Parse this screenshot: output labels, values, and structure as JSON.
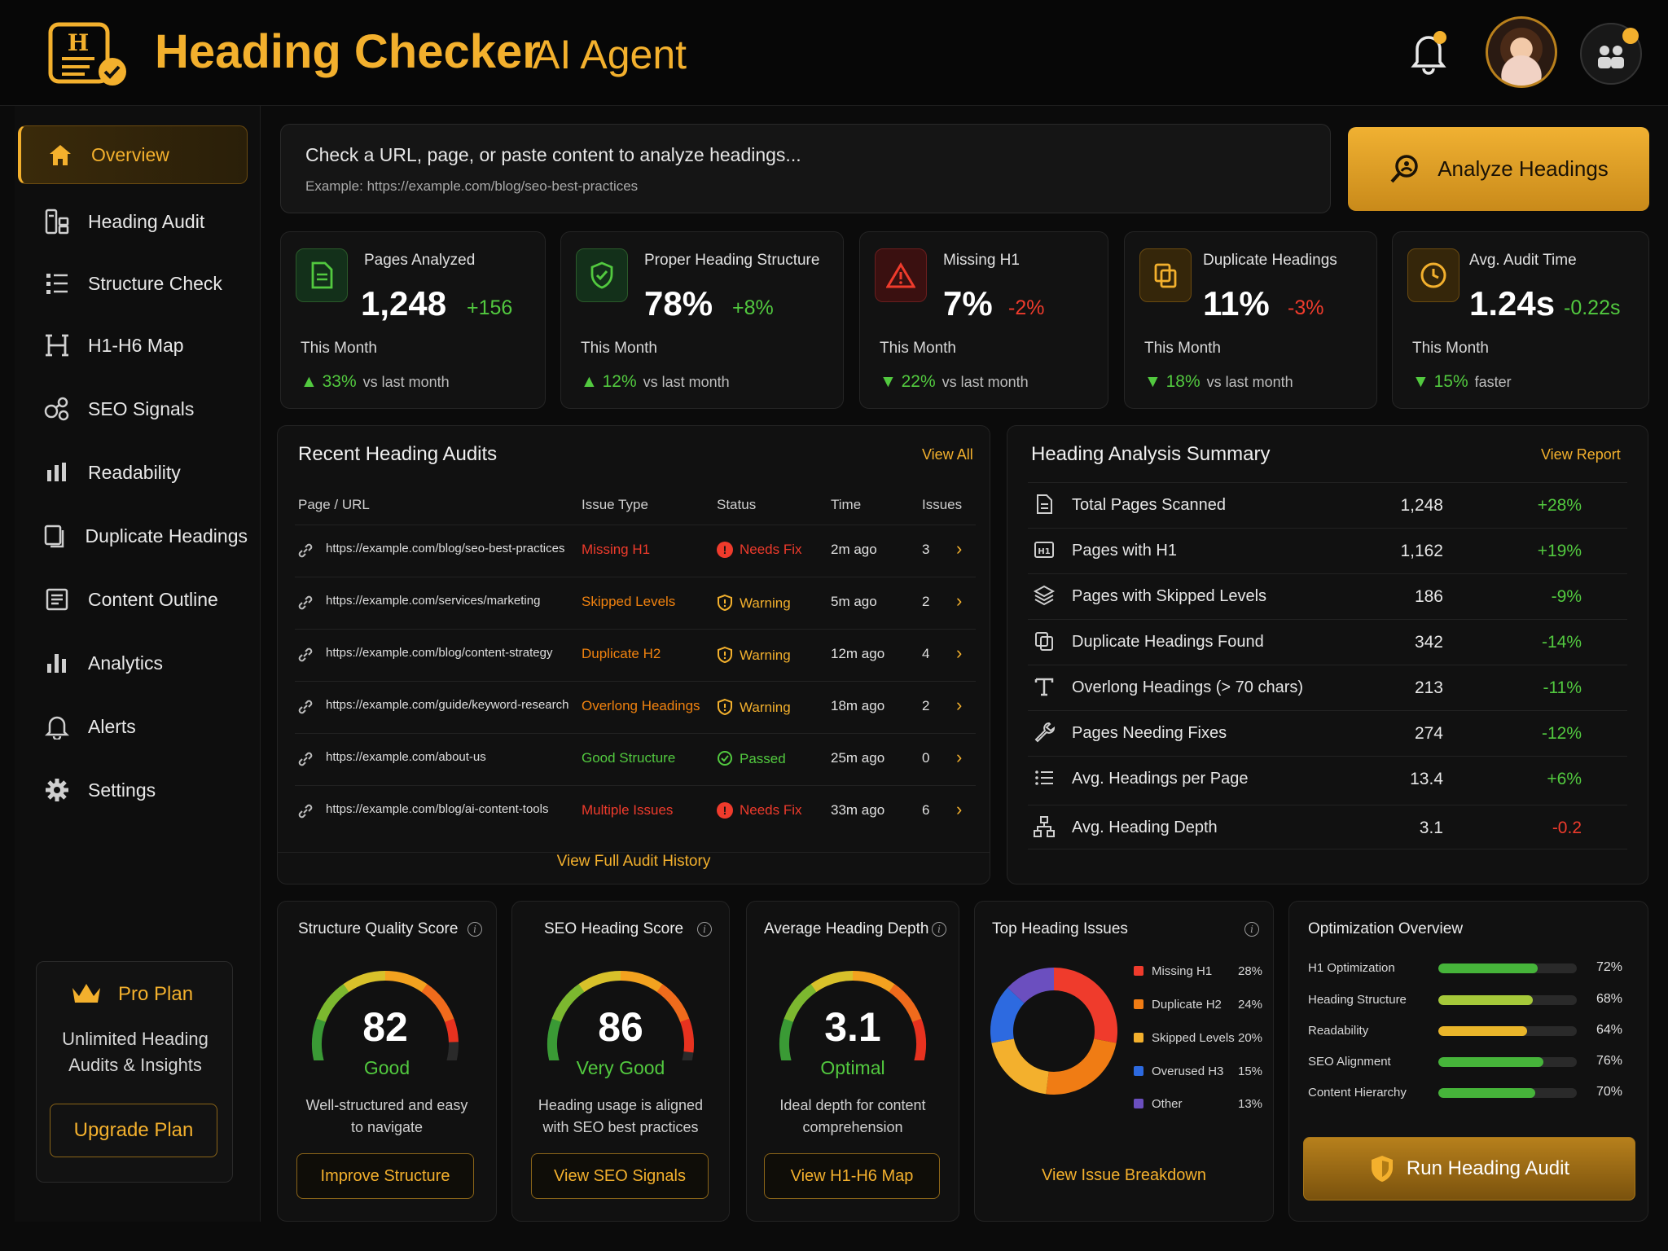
{
  "app": {
    "title_main": "Heading Checker",
    "title_sub": "AI Agent",
    "accent": "#f3b02d"
  },
  "sidebar": {
    "items": [
      {
        "label": "Overview",
        "icon": "home-icon",
        "active": true
      },
      {
        "label": "Heading Audit",
        "icon": "audit-icon"
      },
      {
        "label": "Structure Check",
        "icon": "list-icon"
      },
      {
        "label": "H1-H6 Map",
        "icon": "heading-h-icon"
      },
      {
        "label": "SEO Signals",
        "icon": "seo-signals-icon"
      },
      {
        "label": "Readability",
        "icon": "readability-bars-icon"
      },
      {
        "label": "Duplicate Headings",
        "icon": "duplicate-icon"
      },
      {
        "label": "Content Outline",
        "icon": "outline-icon"
      },
      {
        "label": "Analytics",
        "icon": "analytics-icon"
      },
      {
        "label": "Alerts",
        "icon": "bell-icon"
      },
      {
        "label": "Settings",
        "icon": "gear-icon"
      }
    ],
    "plan": {
      "name": "Pro Plan",
      "desc_line1": "Unlimited Heading",
      "desc_line2": "Audits & Insights",
      "button": "Upgrade Plan"
    }
  },
  "search": {
    "placeholder": "Check a URL, page, or paste content to analyze headings...",
    "example": "Example: https://example.com/blog/seo-best-practices",
    "button": "Analyze Headings"
  },
  "stats": [
    {
      "title": "Pages Analyzed",
      "value": "1,248",
      "delta": "+156",
      "period": "This Month",
      "trend_pct": "33%",
      "trend_text": "vs last month"
    },
    {
      "title": "Proper Heading Structure",
      "value": "78%",
      "delta": "+8%",
      "period": "This Month",
      "trend_pct": "12%",
      "trend_text": "vs last month"
    },
    {
      "title": "Missing H1",
      "value": "7%",
      "delta": "-2%",
      "period": "This Month",
      "trend_pct": "22%",
      "trend_text": "vs last month"
    },
    {
      "title": "Duplicate Headings",
      "value": "11%",
      "delta": "-3%",
      "period": "This Month",
      "trend_pct": "18%",
      "trend_text": "vs last month"
    },
    {
      "title": "Avg. Audit Time",
      "value": "1.24s",
      "delta": "-0.22s",
      "period": "This Month",
      "trend_pct": "15%",
      "trend_text": "faster"
    }
  ],
  "recent": {
    "title": "Recent Heading Audits",
    "view_all": "View All",
    "headers": [
      "Page / URL",
      "Issue Type",
      "Status",
      "Time",
      "Issues"
    ],
    "rows": [
      {
        "url": "https://example.com/blog/seo-best-practices",
        "issue": "Missing H1",
        "status": "Needs Fix",
        "time": "2m ago",
        "count": "3"
      },
      {
        "url": "https://example.com/services/marketing",
        "issue": "Skipped Levels",
        "status": "Warning",
        "time": "5m ago",
        "count": "2"
      },
      {
        "url": "https://example.com/blog/content-strategy",
        "issue": "Duplicate H2",
        "status": "Warning",
        "time": "12m ago",
        "count": "4"
      },
      {
        "url": "https://example.com/guide/keyword-research",
        "issue": "Overlong Headings",
        "status": "Warning",
        "time": "18m ago",
        "count": "2"
      },
      {
        "url": "https://example.com/about-us",
        "issue": "Good Structure",
        "status": "Passed",
        "time": "25m ago",
        "count": "0"
      },
      {
        "url": "https://example.com/blog/ai-content-tools",
        "issue": "Multiple Issues",
        "status": "Needs Fix",
        "time": "33m ago",
        "count": "6"
      }
    ],
    "history_link": "View Full Audit History"
  },
  "summary": {
    "title": "Heading Analysis Summary",
    "view_report": "View Report",
    "rows": [
      {
        "label": "Total Pages Scanned",
        "value": "1,248",
        "delta": "+28%",
        "icon": "document-icon"
      },
      {
        "label": "Pages with H1",
        "value": "1,162",
        "delta": "+19%",
        "icon": "h1-icon"
      },
      {
        "label": "Pages with Skipped Levels",
        "value": "186",
        "delta": "-9%",
        "icon": "layers-icon"
      },
      {
        "label": "Duplicate Headings Found",
        "value": "342",
        "delta": "-14%",
        "icon": "duplicate-icon"
      },
      {
        "label": "Overlong Headings (> 70 chars)",
        "value": "213",
        "delta": "-11%",
        "icon": "text-t-icon"
      },
      {
        "label": "Pages Needing Fixes",
        "value": "274",
        "delta": "-12%",
        "icon": "wrench-icon"
      },
      {
        "label": "Avg. Headings per Page",
        "value": "13.4",
        "delta": "+6%",
        "icon": "list-icon"
      },
      {
        "label": "Avg. Heading Depth",
        "value": "3.1",
        "delta": "-0.2",
        "icon": "hierarchy-icon"
      }
    ]
  },
  "gauges": [
    {
      "title": "Structure Quality Score",
      "value": "82",
      "quality": "Good",
      "desc1": "Well-structured and easy",
      "desc2": "to navigate",
      "button": "Improve Structure",
      "fraction": 0.82
    },
    {
      "title": "SEO Heading Score",
      "value": "86",
      "quality": "Very Good",
      "desc1": "Heading usage is aligned",
      "desc2": "with SEO best practices",
      "button": "View SEO Signals",
      "fraction": 0.86
    },
    {
      "title": "Average Heading Depth",
      "value": "3.1",
      "quality": "Optimal",
      "desc1": "Ideal depth for content",
      "desc2": "comprehension",
      "button": "View H1-H6 Map",
      "fraction": 0.9
    }
  ],
  "issues": {
    "title": "Top Heading Issues",
    "link": "View Issue Breakdown",
    "chart_data": {
      "type": "pie",
      "categories": [
        "Missing H1",
        "Duplicate H2",
        "Skipped Levels",
        "Overused H3",
        "Other"
      ],
      "values": [
        28,
        24,
        20,
        15,
        13
      ],
      "labels": [
        "28%",
        "24%",
        "20%",
        "15%",
        "13%"
      ],
      "colors": [
        "#ef3b2c",
        "#f07c14",
        "#f3b02d",
        "#2d6ae0",
        "#6b4fbf"
      ]
    }
  },
  "optimization": {
    "title": "Optimization Overview",
    "rows": [
      {
        "label": "H1 Optimization",
        "pct": "72%",
        "value": 72,
        "color": "#46b43a"
      },
      {
        "label": "Heading Structure",
        "pct": "68%",
        "value": 68,
        "color": "#a6c93a"
      },
      {
        "label": "Readability",
        "pct": "64%",
        "value": 64,
        "color": "#e9b52a"
      },
      {
        "label": "SEO Alignment",
        "pct": "76%",
        "value": 76,
        "color": "#46b43a"
      },
      {
        "label": "Content Hierarchy",
        "pct": "70%",
        "value": 70,
        "color": "#46b43a"
      }
    ],
    "button": "Run Heading Audit"
  }
}
